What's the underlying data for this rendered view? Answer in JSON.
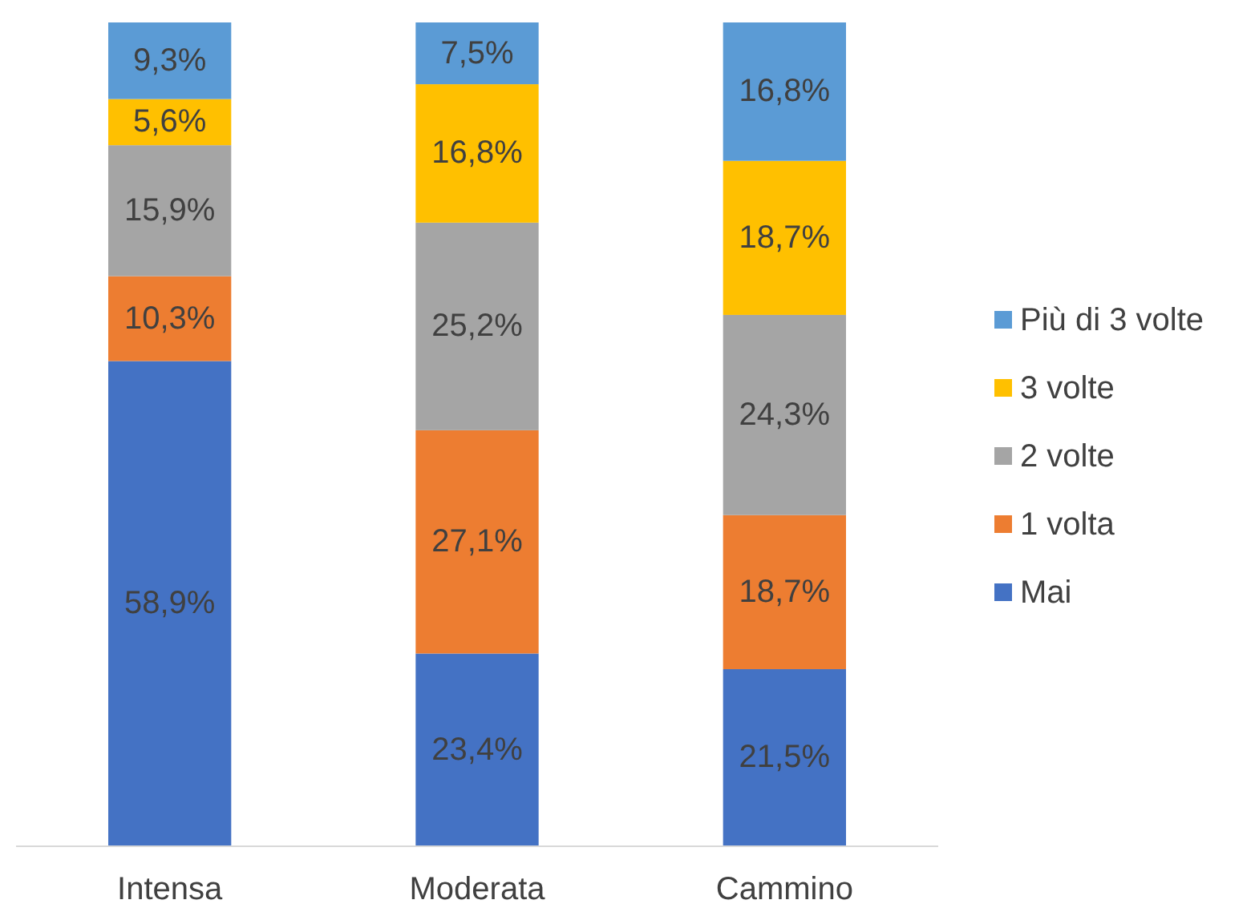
{
  "chart_data": {
    "type": "bar",
    "stacked": true,
    "categories": [
      "Intensa",
      "Moderata",
      "Cammino"
    ],
    "legend": "right",
    "series": [
      {
        "name": "Mai",
        "color": "#4472c4",
        "values": [
          58.9,
          23.4,
          21.5
        ],
        "value_labels": [
          "58,9%",
          "23,4%",
          "21,5%"
        ]
      },
      {
        "name": "1 volta",
        "color": "#ed7d31",
        "values": [
          10.3,
          27.1,
          18.7
        ],
        "value_labels": [
          "10,3%",
          "27,1%",
          "18,7%"
        ]
      },
      {
        "name": "2 volte",
        "color": "#a5a5a5",
        "values": [
          15.9,
          25.2,
          24.3
        ],
        "value_labels": [
          "15,9%",
          "25,2%",
          "24,3%"
        ]
      },
      {
        "name": "3 volte",
        "color": "#ffc000",
        "values": [
          5.6,
          16.8,
          18.7
        ],
        "value_labels": [
          "5,6%",
          "16,8%",
          "18,7%"
        ]
      },
      {
        "name": "Più di 3 volte",
        "color": "#5b9bd5",
        "values": [
          9.3,
          7.5,
          16.8
        ],
        "value_labels": [
          "9,3%",
          "7,5%",
          "16,8%"
        ]
      }
    ]
  }
}
